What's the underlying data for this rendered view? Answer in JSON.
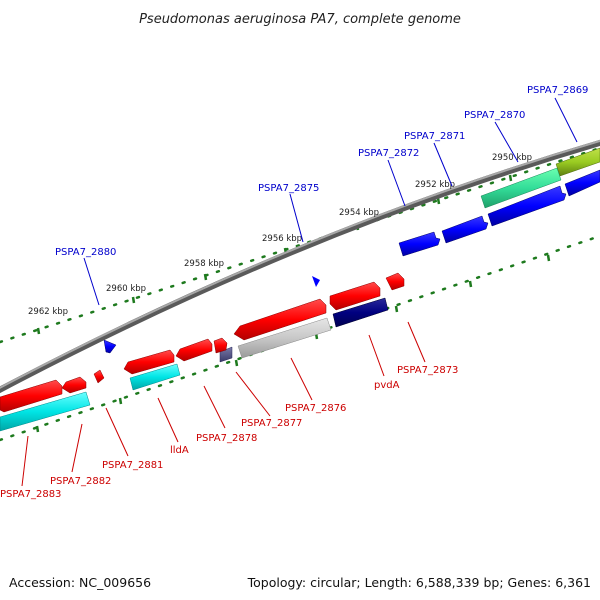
{
  "title": "Pseudomonas aeruginosa PA7, complete genome",
  "footer": {
    "accession": "Accession: NC_009656",
    "summary": "Topology: circular; Length: 6,588,339 bp; Genes: 6,361"
  },
  "colors": {
    "backbone": "#808080",
    "tick_marks": "#1e7a1e",
    "top_strand_label": "#0000cc",
    "bottom_strand_label": "#cc0000"
  },
  "scale_labels": [
    "2950 kbp",
    "2952 kbp",
    "2954 kbp",
    "2956 kbp",
    "2958 kbp",
    "2960 kbp",
    "2962 kbp"
  ],
  "top_labels": [
    "PSPA7_2869",
    "PSPA7_2870",
    "PSPA7_2871",
    "PSPA7_2872",
    "PSPA7_2875",
    "PSPA7_2880"
  ],
  "bottom_labels": [
    "PSPA7_2873",
    "pvdA",
    "PSPA7_2876",
    "PSPA7_2877",
    "PSPA7_2878",
    "lldA",
    "PSPA7_2881",
    "PSPA7_2882",
    "PSPA7_2883"
  ]
}
